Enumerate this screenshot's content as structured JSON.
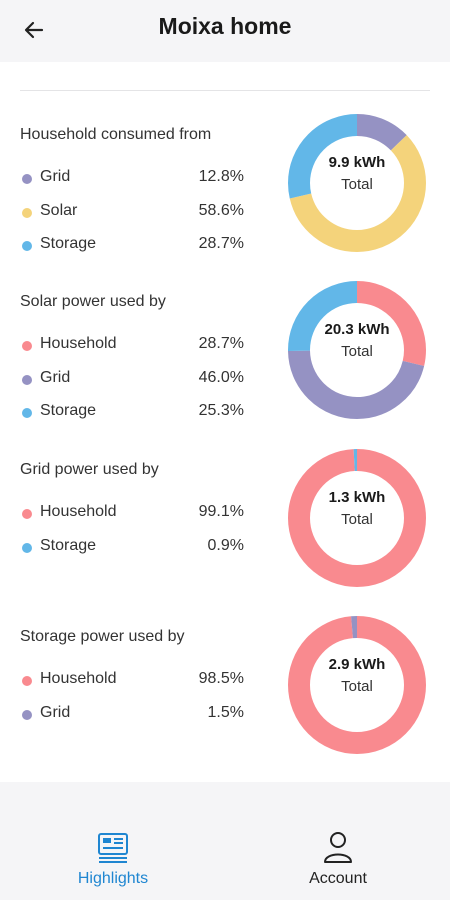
{
  "header": {
    "title": "Moixa home",
    "back_icon": "arrow-left-icon"
  },
  "colors": {
    "grid": "#9592c3",
    "solar": "#f4d37b",
    "storage": "#62b7e8",
    "household": "#f98a8f",
    "accent": "#1f86d1"
  },
  "sections": [
    {
      "title": "Household consumed from",
      "total_value": "9.9 kWh",
      "total_label": "Total",
      "items": [
        {
          "label": "Grid",
          "value": "12.8%",
          "percent": 12.8,
          "color": "#9592c3"
        },
        {
          "label": "Solar",
          "value": "58.6%",
          "percent": 58.6,
          "color": "#f4d37b"
        },
        {
          "label": "Storage",
          "value": "28.7%",
          "percent": 28.7,
          "color": "#62b7e8"
        }
      ]
    },
    {
      "title": "Solar power used by",
      "total_value": "20.3 kWh",
      "total_label": "Total",
      "items": [
        {
          "label": "Household",
          "value": "28.7%",
          "percent": 28.7,
          "color": "#f98a8f"
        },
        {
          "label": "Grid",
          "value": "46.0%",
          "percent": 46.0,
          "color": "#9592c3"
        },
        {
          "label": "Storage",
          "value": "25.3%",
          "percent": 25.3,
          "color": "#62b7e8"
        }
      ]
    },
    {
      "title": "Grid power used by",
      "total_value": "1.3 kWh",
      "total_label": "Total",
      "items": [
        {
          "label": "Household",
          "value": "99.1%",
          "percent": 99.1,
          "color": "#f98a8f"
        },
        {
          "label": "Storage",
          "value": "0.9%",
          "percent": 0.9,
          "color": "#62b7e8"
        }
      ]
    },
    {
      "title": "Storage power used by",
      "total_value": "2.9 kWh",
      "total_label": "Total",
      "items": [
        {
          "label": "Household",
          "value": "98.5%",
          "percent": 98.5,
          "color": "#f98a8f"
        },
        {
          "label": "Grid",
          "value": "1.5%",
          "percent": 1.5,
          "color": "#9592c3"
        }
      ]
    }
  ],
  "nav": {
    "highlights": {
      "label": "Highlights",
      "icon": "highlights-icon",
      "active": true
    },
    "account": {
      "label": "Account",
      "icon": "account-icon",
      "active": false
    }
  }
}
